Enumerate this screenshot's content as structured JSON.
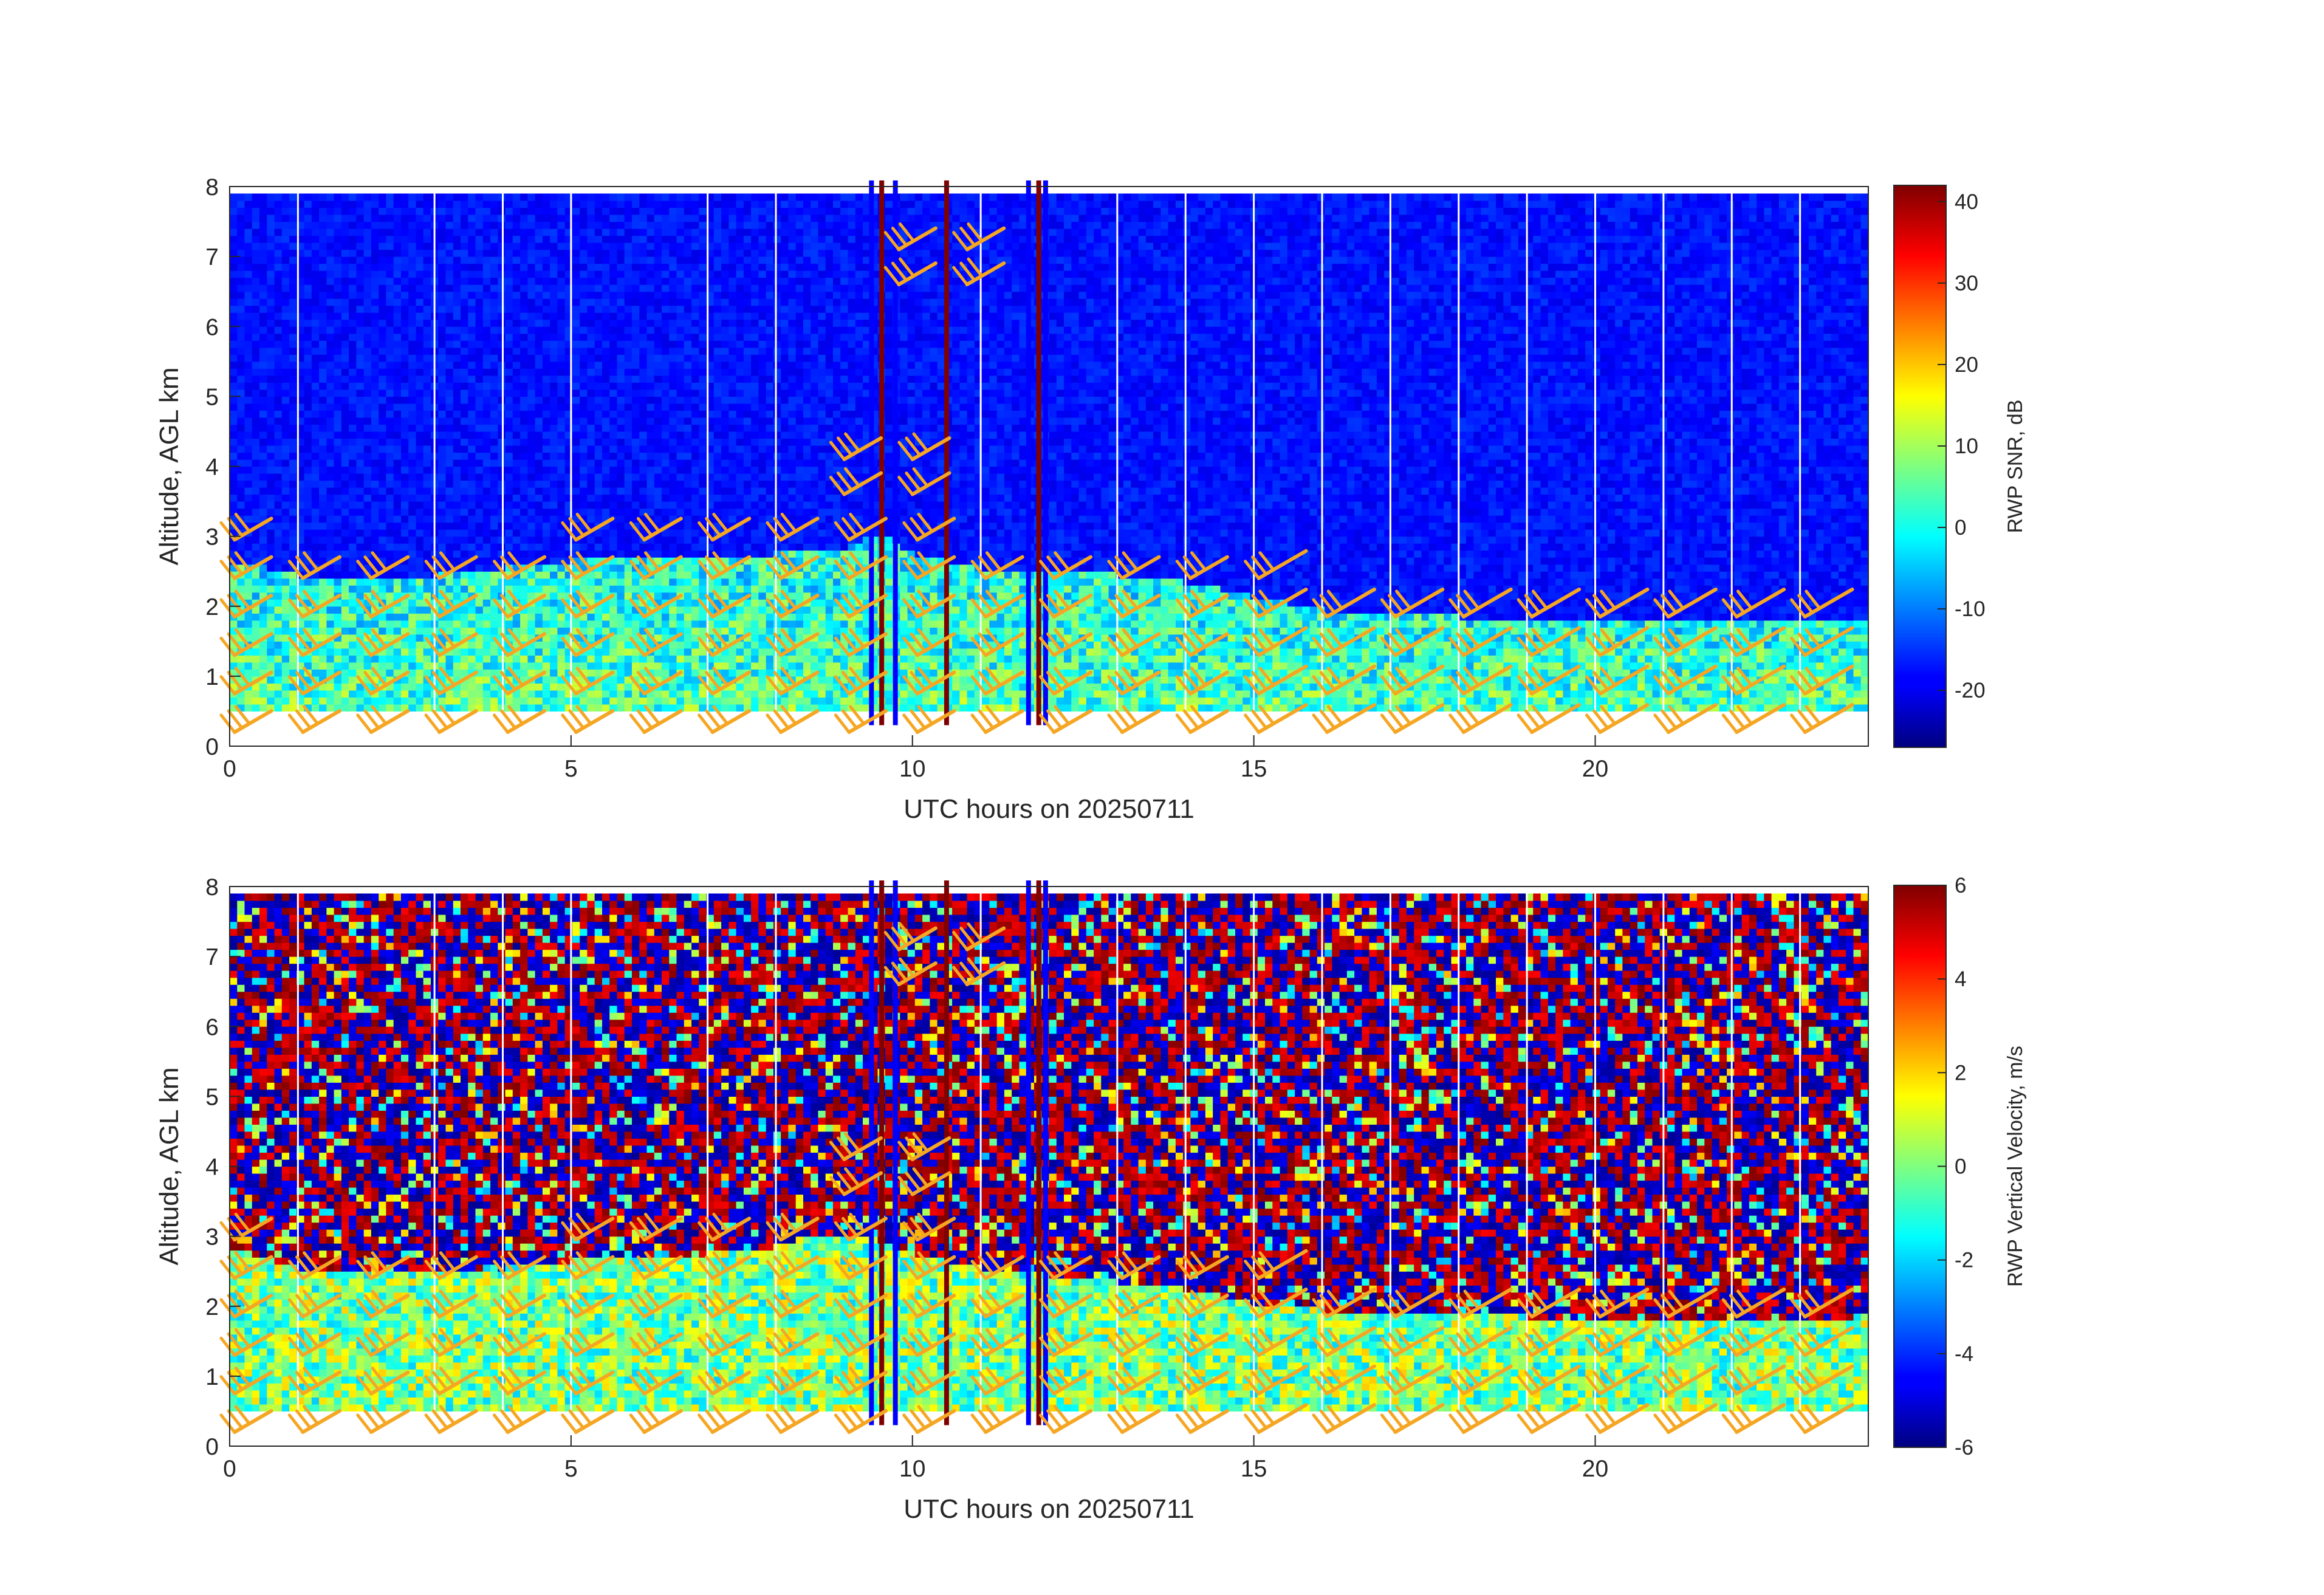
{
  "figure": {
    "date_label": "UTC hours on 20250711",
    "barb_color": "#f5a623"
  },
  "chart_data": [
    {
      "type": "heatmap",
      "title": "",
      "xlabel": "UTC hours on 20250711",
      "ylabel": "Altitude, AGL km",
      "xlim": [
        0,
        24
      ],
      "ylim": [
        0,
        8
      ],
      "x_ticks": [
        0,
        5,
        10,
        15,
        20
      ],
      "y_ticks": [
        0,
        1,
        2,
        3,
        4,
        5,
        6,
        7,
        8
      ],
      "colorbar": {
        "label": "RWP SNR, dB",
        "range": [
          -27,
          42
        ],
        "ticks": [
          -20,
          -10,
          0,
          10,
          20,
          30,
          40
        ],
        "colormap": "jet"
      },
      "field_bottom_km": 0.5,
      "field_top_km": 7.9,
      "boundary_layer_top_km": [
        [
          0,
          2.6
        ],
        [
          1,
          2.4
        ],
        [
          2,
          2.3
        ],
        [
          3,
          2.4
        ],
        [
          4,
          2.5
        ],
        [
          5,
          2.6
        ],
        [
          6,
          2.7
        ],
        [
          7,
          2.6
        ],
        [
          8,
          2.7
        ],
        [
          9,
          2.8
        ],
        [
          9.5,
          3.0
        ],
        [
          10,
          2.7
        ],
        [
          11,
          2.5
        ],
        [
          12,
          2.5
        ],
        [
          13,
          2.4
        ],
        [
          14,
          2.3
        ],
        [
          15,
          2.1
        ],
        [
          16,
          1.9
        ],
        [
          17,
          1.9
        ],
        [
          18,
          1.8
        ],
        [
          19,
          1.8
        ],
        [
          20,
          1.8
        ],
        [
          21,
          1.8
        ],
        [
          22,
          1.8
        ],
        [
          23,
          1.8
        ],
        [
          24,
          1.8
        ]
      ],
      "data_gaps_hours": [
        1.0,
        3.0,
        4.0,
        5.0,
        7.0,
        8.0,
        11.0,
        13.0,
        14.0,
        15.0,
        16.0,
        17.0,
        18.0,
        19.0,
        20.0,
        21.0,
        22.0,
        23.0
      ],
      "spike_columns_hours": [
        9.4,
        9.55,
        9.75,
        10.5,
        11.7,
        11.85,
        11.95
      ]
    },
    {
      "type": "heatmap",
      "title": "",
      "xlabel": "UTC hours on 20250711",
      "ylabel": "Altitude, AGL km",
      "xlim": [
        0,
        24
      ],
      "ylim": [
        0,
        8
      ],
      "x_ticks": [
        0,
        5,
        10,
        15,
        20
      ],
      "y_ticks": [
        0,
        1,
        2,
        3,
        4,
        5,
        6,
        7,
        8
      ],
      "colorbar": {
        "label": "RWP Vertical Velocity, m/s",
        "range": [
          -6,
          6
        ],
        "ticks": [
          -6,
          -4,
          -2,
          0,
          2,
          4,
          6
        ],
        "colormap": "jet"
      },
      "field_bottom_km": 0.5,
      "field_top_km": 7.9,
      "boundary_layer_top_km": [
        [
          0,
          2.8
        ],
        [
          1,
          2.5
        ],
        [
          2,
          2.4
        ],
        [
          3,
          2.5
        ],
        [
          4,
          2.5
        ],
        [
          5,
          2.6
        ],
        [
          6,
          2.7
        ],
        [
          7,
          2.7
        ],
        [
          8,
          2.8
        ],
        [
          9,
          3.0
        ],
        [
          10,
          2.7
        ],
        [
          11,
          2.5
        ],
        [
          12,
          2.4
        ],
        [
          13,
          2.3
        ],
        [
          14,
          2.2
        ],
        [
          15,
          2.0
        ],
        [
          16,
          1.9
        ],
        [
          17,
          1.9
        ],
        [
          18,
          1.9
        ],
        [
          19,
          1.8
        ],
        [
          20,
          1.8
        ],
        [
          21,
          1.8
        ],
        [
          22,
          1.8
        ],
        [
          23,
          1.8
        ],
        [
          24,
          1.8
        ]
      ],
      "data_gaps_hours": [
        1.0,
        3.0,
        4.0,
        5.0,
        7.0,
        8.0,
        11.0,
        13.0,
        14.0,
        15.0,
        16.0,
        17.0,
        18.0,
        19.0,
        20.0,
        21.0,
        22.0,
        23.0
      ],
      "spike_columns_hours": [
        9.4,
        9.55,
        9.75,
        10.5,
        11.7,
        11.85,
        11.95
      ]
    }
  ],
  "wind_barbs": {
    "color": "#f5a623",
    "low_level_times_hours": [
      0,
      1,
      2,
      3,
      4,
      5,
      6,
      7,
      8,
      9,
      10,
      11,
      12,
      13,
      14,
      15,
      16,
      17,
      18,
      19,
      20,
      21,
      22,
      23
    ],
    "low_level_heights_km": [
      0.2,
      0.75,
      1.3,
      1.85,
      2.4,
      2.95
    ],
    "upper_barbs": [
      {
        "t": 9.0,
        "h": 3.6
      },
      {
        "t": 9.0,
        "h": 4.1
      },
      {
        "t": 10.0,
        "h": 3.6
      },
      {
        "t": 10.0,
        "h": 4.1
      },
      {
        "t": 9.8,
        "h": 6.6
      },
      {
        "t": 9.8,
        "h": 7.1
      },
      {
        "t": 10.8,
        "h": 6.6
      },
      {
        "t": 10.8,
        "h": 7.1
      }
    ]
  }
}
